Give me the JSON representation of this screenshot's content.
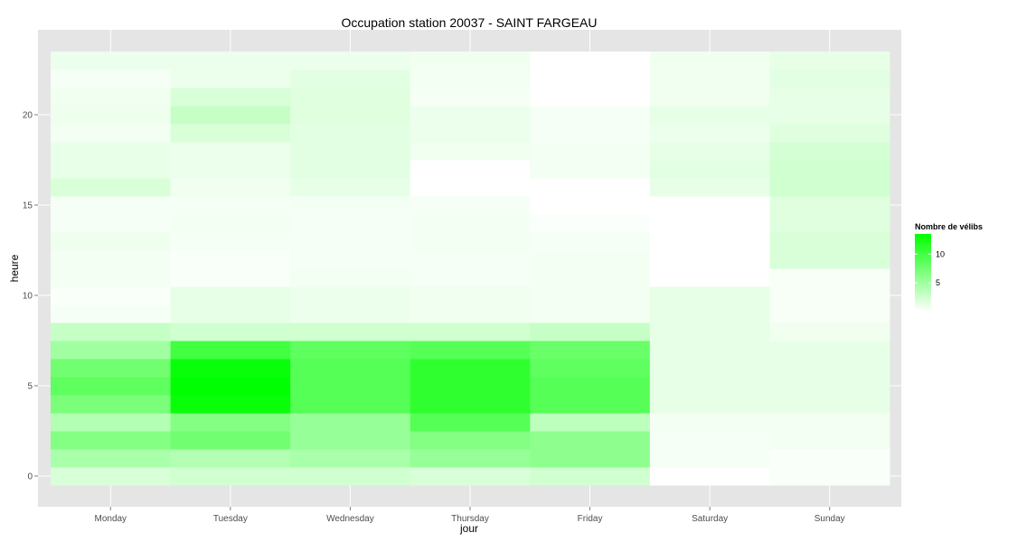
{
  "chart_data": {
    "type": "heatmap",
    "title": "Occupation station 20037 - SAINT FARGEAU",
    "xlabel": "jour",
    "ylabel": "heure",
    "categories": [
      "Monday",
      "Tuesday",
      "Wednesday",
      "Thursday",
      "Friday",
      "Saturday",
      "Sunday"
    ],
    "y_ticks": [
      0,
      5,
      10,
      15,
      20
    ],
    "ylim": [
      -0.5,
      23.5
    ],
    "hours": [
      0,
      1,
      2,
      3,
      4,
      5,
      6,
      7,
      8,
      9,
      10,
      11,
      12,
      13,
      14,
      15,
      16,
      17,
      18,
      19,
      20,
      21,
      22,
      23
    ],
    "values": [
      [
        2.0,
        4.5,
        6.5,
        4.0,
        7.0,
        8.5,
        7.5,
        5.0,
        3.0,
        0.5,
        0.3,
        0.7,
        0.7,
        0.9,
        0.5,
        0.5,
        2.0,
        1.2,
        1.2,
        0.7,
        0.9,
        0.8,
        0.5,
        1.0
      ],
      [
        2.5,
        4.0,
        7.5,
        6.5,
        13.0,
        13.5,
        13.0,
        10.0,
        2.5,
        1.3,
        1.3,
        0.3,
        0.3,
        0.5,
        0.6,
        0.5,
        0.8,
        1.0,
        1.0,
        2.0,
        3.0,
        2.0,
        1.0,
        1.0
      ],
      [
        2.5,
        4.5,
        5.5,
        5.5,
        9.0,
        9.0,
        9.0,
        8.5,
        2.5,
        1.0,
        1.0,
        0.7,
        0.5,
        0.5,
        0.5,
        0.6,
        1.3,
        1.5,
        1.5,
        1.5,
        1.7,
        1.7,
        1.5,
        1.0
      ],
      [
        2.0,
        5.5,
        6.5,
        9.0,
        11.0,
        11.0,
        11.0,
        9.0,
        2.5,
        0.8,
        0.8,
        0.5,
        0.5,
        0.7,
        0.6,
        0.5,
        0.0,
        0.0,
        0.8,
        1.0,
        1.0,
        0.5,
        0.7,
        0.8
      ],
      [
        2.5,
        6.0,
        6.0,
        3.5,
        9.0,
        9.0,
        8.5,
        8.0,
        3.0,
        0.7,
        0.7,
        0.6,
        0.6,
        0.5,
        0.2,
        0.0,
        0.0,
        0.6,
        0.6,
        0.5,
        0.5,
        0.0,
        0.0,
        0.0
      ],
      [
        0.0,
        0.5,
        0.5,
        0.7,
        1.3,
        1.3,
        1.3,
        1.3,
        1.3,
        1.3,
        1.3,
        0.0,
        0.0,
        0.0,
        0.0,
        0.0,
        1.3,
        1.5,
        1.3,
        1.0,
        1.3,
        0.8,
        0.8,
        0.8
      ],
      [
        0.3,
        0.3,
        0.6,
        0.6,
        1.3,
        1.3,
        1.3,
        1.3,
        0.8,
        0.4,
        0.4,
        0.4,
        2.0,
        2.0,
        1.7,
        1.7,
        2.5,
        2.5,
        2.3,
        1.7,
        1.3,
        1.3,
        1.5,
        1.3
      ]
    ],
    "legend": {
      "title": "Nombre de vélibs",
      "ticks": [
        5,
        10
      ],
      "range": [
        0,
        13.5
      ],
      "placement": "right"
    },
    "colors": {
      "low": "#ffffff",
      "high": "#00ff00",
      "panel": "#e5e5e5",
      "grid": "#ffffff"
    },
    "grid": true
  }
}
